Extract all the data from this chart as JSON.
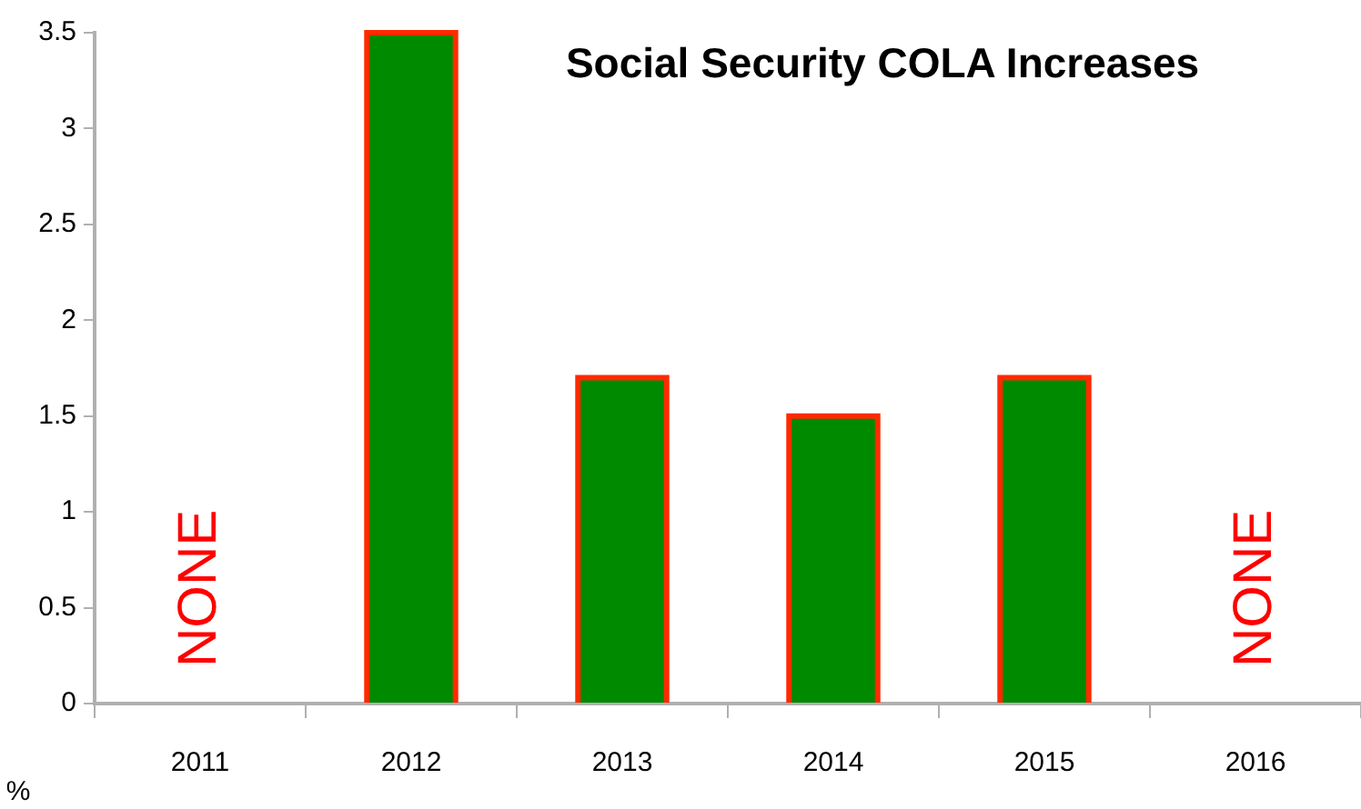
{
  "chart_data": {
    "type": "bar",
    "title": "Social Security COLA Increases",
    "ylabel": "%",
    "categories": [
      "2011",
      "2012",
      "2013",
      "2014",
      "2015",
      "2016"
    ],
    "values": [
      0,
      3.5,
      1.7,
      1.5,
      1.7,
      0
    ],
    "color": "#008a00",
    "ylim": [
      0,
      3.5
    ],
    "yticks": [
      0,
      0.5,
      1,
      1.5,
      2,
      2.5,
      3,
      3.5
    ],
    "grid": false,
    "legend": false,
    "annotations": [
      {
        "text": "NONE",
        "x": "2011",
        "y": 0
      },
      {
        "text": "NONE",
        "x": "2016",
        "y": 0
      }
    ]
  }
}
